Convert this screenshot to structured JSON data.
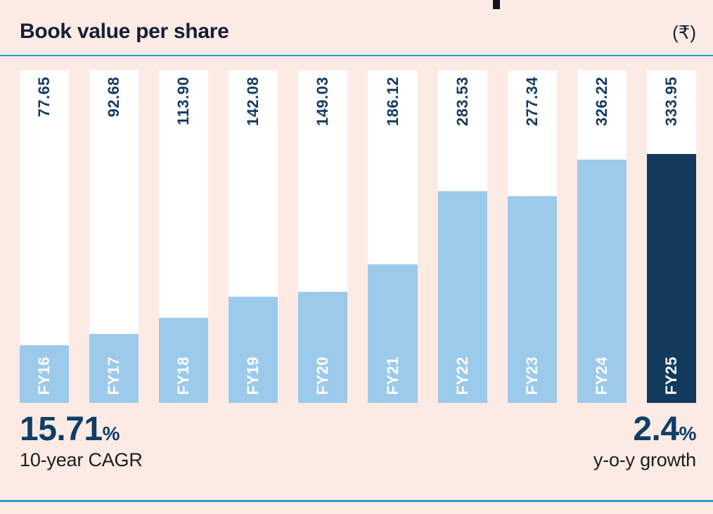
{
  "header": {
    "title": "Book value per share",
    "unit": "(₹)"
  },
  "chart_data": {
    "type": "bar",
    "title": "Book value per share",
    "unit": "₹",
    "categories": [
      "FY16",
      "FY17",
      "FY18",
      "FY19",
      "FY20",
      "FY21",
      "FY22",
      "FY23",
      "FY24",
      "FY25"
    ],
    "values": [
      77.65,
      92.68,
      113.9,
      142.08,
      149.03,
      186.12,
      283.53,
      277.34,
      326.22,
      333.95
    ],
    "value_labels": [
      "77.65",
      "92.68",
      "113.90",
      "142.08",
      "149.03",
      "186.12",
      "283.53",
      "277.34",
      "326.22",
      "333.95"
    ],
    "ylim": [
      0,
      446
    ],
    "grid": false,
    "legend": false,
    "highlight_category": "FY25",
    "colors": {
      "bar": "#9ccaea",
      "highlight_bar": "#113a5d",
      "track": "#ffffff",
      "value_text": "#143a63",
      "category_text": "#ffffff",
      "background": "#fcebe5",
      "rule": "#2e9bcf"
    }
  },
  "footer": {
    "left": {
      "value": "15.71",
      "percent": "%",
      "label": "10-year CAGR"
    },
    "right": {
      "value": "2.4",
      "percent": "%",
      "label": "y-o-y growth"
    }
  }
}
